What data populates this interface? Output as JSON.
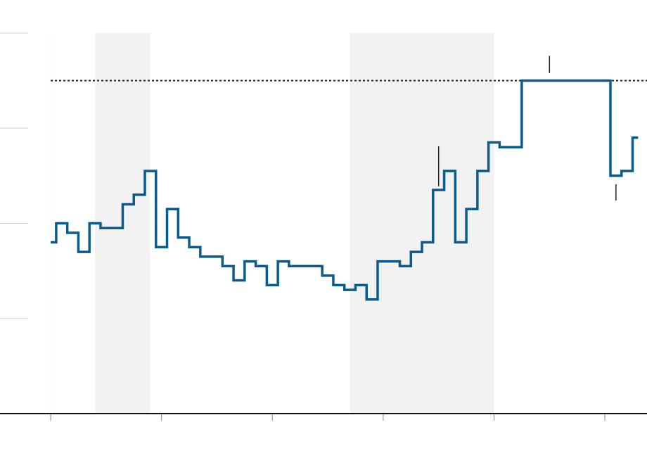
{
  "chart_data": {
    "type": "step",
    "color": "#0b5b8c",
    "x": [
      0,
      0.5,
      1.5,
      2.5,
      3.5,
      4.5,
      6.5,
      7.5,
      8.5,
      9.5,
      10.5,
      11.5,
      12.5,
      13.5,
      15.5,
      16.5,
      17.5,
      18.5,
      19.5,
      20.5,
      21.5,
      24.5,
      25.5,
      26.5,
      27.5,
      28.5,
      29.5,
      31.5,
      32.5,
      33.5,
      34.5,
      35.5,
      36.5,
      37.5,
      38.5,
      39.5,
      40.5,
      42.5,
      50.5,
      51.5,
      52.5,
      53
    ],
    "values": [
      1.8,
      2.0,
      1.9,
      1.7,
      2.0,
      1.95,
      2.2,
      2.3,
      2.55,
      1.75,
      2.15,
      1.85,
      1.75,
      1.65,
      1.55,
      1.4,
      1.6,
      1.55,
      1.35,
      1.6,
      1.55,
      1.45,
      1.35,
      1.3,
      1.35,
      1.2,
      1.6,
      1.55,
      1.7,
      1.8,
      2.35,
      2.55,
      1.8,
      2.15,
      2.55,
      2.85,
      2.8,
      3.5,
      2.5,
      2.55,
      2.9,
      2.9
    ],
    "xlim": [
      -4.57,
      53.8
    ],
    "xticks": [
      0,
      10,
      20,
      30,
      40,
      50
    ],
    "ylim": [
      0,
      4
    ],
    "yticks": [
      0,
      1,
      2,
      3,
      4
    ],
    "grid": true,
    "reference_line": 3.5,
    "shaded_ranges": [
      [
        4.0,
        8.95
      ],
      [
        27.0,
        40.0
      ]
    ],
    "intervals": [
      {
        "x": 35,
        "low": 2.39,
        "high": 2.81
      },
      {
        "x": 45,
        "low": 3.58,
        "high": 3.76
      },
      {
        "x": 51,
        "low": 2.24,
        "high": 2.41
      }
    ]
  }
}
